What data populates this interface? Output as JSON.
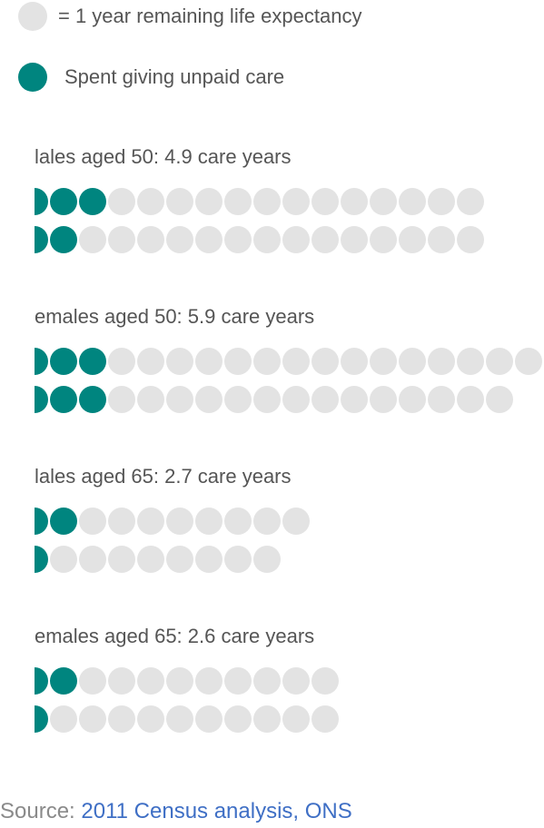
{
  "colors": {
    "empty": "#e3e3e3",
    "care": "#00857f"
  },
  "legend": {
    "remaining_label": "= 1 year remaining life expectancy",
    "care_label": "Spent giving unpaid care"
  },
  "chart_data": {
    "type": "table",
    "unit_per_dot": "1 year remaining life expectancy",
    "groups": [
      {
        "label": "lales aged 50: 4.9 care years",
        "care_years": 4.9,
        "rows": [
          {
            "total": 16,
            "care": 3
          },
          {
            "total": 16,
            "care": 2
          }
        ]
      },
      {
        "label": "emales aged 50: 5.9 care years",
        "care_years": 5.9,
        "rows": [
          {
            "total": 18,
            "care": 3
          },
          {
            "total": 17,
            "care": 3
          }
        ]
      },
      {
        "label": "lales aged 65: 2.7 care years",
        "care_years": 2.7,
        "rows": [
          {
            "total": 10,
            "care": 2
          },
          {
            "total": 9,
            "care": 1
          }
        ]
      },
      {
        "label": "emales aged 65: 2.6 care years",
        "care_years": 2.6,
        "rows": [
          {
            "total": 11,
            "care": 2
          },
          {
            "total": 11,
            "care": 1
          }
        ]
      }
    ]
  },
  "footer": {
    "source_label": "Source:",
    "source_link": "2011 Census analysis, ONS"
  }
}
